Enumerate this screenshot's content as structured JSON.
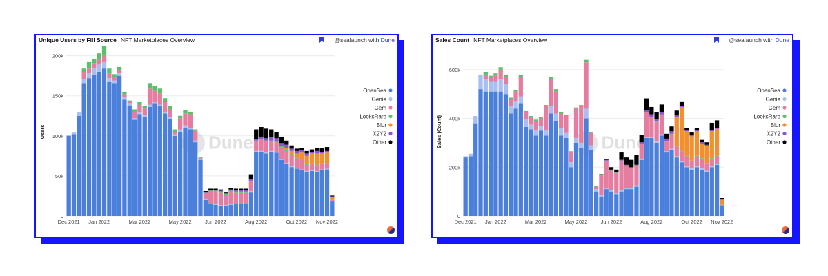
{
  "branding": {
    "credit_prefix": "@sealaunch with",
    "credit_brand": "Dune",
    "watermark": "Dune"
  },
  "legend": [
    {
      "name": "OpenSea",
      "color": "#4a7fdc"
    },
    {
      "name": "Genie",
      "color": "#a9bff2"
    },
    {
      "name": "Gem",
      "color": "#e67da0"
    },
    {
      "name": "LooksRare",
      "color": "#5dbf6a"
    },
    {
      "name": "Blur",
      "color": "#f2902f"
    },
    {
      "name": "X2Y2",
      "color": "#8b55d6"
    },
    {
      "name": "Other",
      "color": "#000000"
    }
  ],
  "chart_data": [
    {
      "type": "bar",
      "stacked": true,
      "title": "Unique Users by Fill Source",
      "subtitle": "NFT Marketplaces Overview",
      "xlabel": "",
      "ylabel": "Users",
      "ylim": [
        0,
        210000
      ],
      "yticks": [
        0,
        50000,
        100000,
        150000,
        200000
      ],
      "ytick_labels": [
        "0",
        "50k",
        "100k",
        "150k",
        "200k"
      ],
      "xtick_labels": [
        {
          "label": "Dec 2021",
          "index": 0
        },
        {
          "label": "Jan 2022",
          "index": 6
        },
        {
          "label": "Mar 2022",
          "index": 14
        },
        {
          "label": "May 2022",
          "index": 22
        },
        {
          "label": "Jun 2022",
          "index": 29
        },
        {
          "label": "Aug 2022",
          "index": 37
        },
        {
          "label": "Oct 2022",
          "index": 45
        },
        {
          "label": "Nov 2022",
          "index": 51
        }
      ],
      "grid": true,
      "legend_position": "right",
      "series": [
        {
          "name": "OpenSea",
          "values": [
            100000,
            102000,
            125000,
            165000,
            172000,
            176000,
            180000,
            184000,
            167000,
            165000,
            175000,
            145000,
            138000,
            120000,
            127000,
            124000,
            136000,
            140000,
            137000,
            128000,
            121000,
            100000,
            105000,
            110000,
            108000,
            92000,
            70000,
            20000,
            15000,
            14000,
            13000,
            13000,
            14000,
            15000,
            15000,
            15000,
            30000,
            80000,
            80000,
            78000,
            80000,
            79000,
            70000,
            65000,
            61000,
            59000,
            57000,
            55000,
            56000,
            55000,
            57000,
            58000,
            18000
          ]
        },
        {
          "name": "Genie",
          "values": [
            1000,
            2000,
            5000,
            6000,
            6000,
            8000,
            9000,
            8000,
            5000,
            4000,
            3000,
            3000,
            2000,
            2000,
            2000,
            2000,
            3000,
            2000,
            2000,
            2000,
            2000,
            2000,
            3000,
            3000,
            2000,
            2000,
            1000,
            500,
            500,
            500,
            500,
            500,
            500,
            500,
            500,
            500,
            1000,
            1000,
            1000,
            1000,
            1000,
            1000,
            1000,
            1000,
            1000,
            1000,
            1000,
            1000,
            1000,
            1000,
            1000,
            1000,
            500
          ]
        },
        {
          "name": "Gem",
          "values": [
            0,
            0,
            0,
            8000,
            6000,
            6000,
            6000,
            8000,
            6000,
            4000,
            4000,
            4000,
            2000,
            8000,
            10000,
            8000,
            20000,
            14000,
            14000,
            12000,
            10000,
            3000,
            14000,
            15000,
            17000,
            12000,
            1000,
            8000,
            15000,
            16000,
            16000,
            13000,
            16000,
            14000,
            14000,
            14000,
            12000,
            12000,
            14000,
            14000,
            12000,
            12000,
            15000,
            15000,
            14000,
            12000,
            12000,
            8000,
            8000,
            7000,
            7000,
            6000,
            2000
          ]
        },
        {
          "name": "LooksRare",
          "values": [
            0,
            0,
            0,
            5000,
            8000,
            6000,
            8000,
            12000,
            6000,
            4000,
            4000,
            3000,
            2000,
            3000,
            3000,
            3000,
            6000,
            6000,
            6000,
            5000,
            4000,
            3000,
            3000,
            4000,
            3000,
            2000,
            1000,
            1000,
            1000,
            1000,
            1000,
            1000,
            1000,
            1000,
            1000,
            1000,
            1000,
            1000,
            1000,
            1000,
            1000,
            1000,
            1000,
            1000,
            1000,
            1000,
            1000,
            1000,
            1000,
            1000,
            1000,
            1000,
            500
          ]
        },
        {
          "name": "Blur",
          "values": [
            0,
            0,
            0,
            0,
            0,
            0,
            0,
            0,
            0,
            0,
            0,
            0,
            0,
            0,
            0,
            0,
            0,
            0,
            0,
            0,
            0,
            0,
            0,
            0,
            0,
            0,
            0,
            0,
            0,
            0,
            0,
            0,
            0,
            0,
            0,
            0,
            0,
            0,
            0,
            0,
            0,
            0,
            0,
            3000,
            4000,
            5000,
            8000,
            10000,
            12000,
            14000,
            12000,
            13000,
            3000
          ]
        },
        {
          "name": "X2Y2",
          "values": [
            0,
            0,
            0,
            0,
            0,
            0,
            0,
            0,
            0,
            0,
            0,
            0,
            0,
            0,
            0,
            0,
            0,
            0,
            0,
            0,
            0,
            0,
            0,
            0,
            0,
            0,
            0,
            500,
            1000,
            1000,
            1000,
            1000,
            1500,
            1500,
            1500,
            1500,
            2000,
            2000,
            3000,
            3000,
            4000,
            4000,
            4000,
            4000,
            3000,
            3000,
            3000,
            3000,
            2000,
            3000,
            2000,
            2000,
            500
          ]
        },
        {
          "name": "Other",
          "values": [
            0,
            0,
            0,
            0,
            0,
            0,
            0,
            0,
            0,
            0,
            0,
            0,
            0,
            0,
            0,
            0,
            0,
            0,
            0,
            0,
            0,
            0,
            0,
            0,
            0,
            0,
            0,
            1000,
            1500,
            1500,
            1500,
            1500,
            2000,
            2000,
            2000,
            2000,
            6000,
            12000,
            12000,
            12000,
            10000,
            8000,
            8000,
            5000,
            4000,
            3000,
            3000,
            3000,
            3000,
            4000,
            5000,
            5000,
            1000
          ]
        }
      ]
    },
    {
      "type": "bar",
      "stacked": true,
      "title": "Sales Count",
      "subtitle": "NFT Marketplaces Overview",
      "xlabel": "",
      "ylabel": "Sales (Count)",
      "ylim": [
        0,
        690000
      ],
      "yticks": [
        0,
        200000,
        400000,
        600000
      ],
      "ytick_labels": [
        "0",
        "200k",
        "400k",
        "600k"
      ],
      "xtick_labels": [
        {
          "label": "Dec 2021",
          "index": 0
        },
        {
          "label": "Jan 2022",
          "index": 6
        },
        {
          "label": "Mar 2022",
          "index": 14
        },
        {
          "label": "May 2022",
          "index": 22
        },
        {
          "label": "Jun 2022",
          "index": 29
        },
        {
          "label": "Aug 2022",
          "index": 37
        },
        {
          "label": "Oct 2022",
          "index": 45
        },
        {
          "label": "Nov 2022",
          "index": 51
        }
      ],
      "grid": true,
      "legend_position": "right",
      "series": [
        {
          "name": "OpenSea",
          "values": [
            240000,
            245000,
            380000,
            520000,
            510000,
            510000,
            510000,
            510000,
            500000,
            420000,
            440000,
            460000,
            365000,
            355000,
            330000,
            350000,
            330000,
            420000,
            390000,
            330000,
            320000,
            200000,
            300000,
            280000,
            400000,
            270000,
            100000,
            80000,
            110000,
            100000,
            90000,
            100000,
            110000,
            110000,
            120000,
            230000,
            320000,
            320000,
            300000,
            330000,
            260000,
            270000,
            240000,
            220000,
            200000,
            190000,
            200000,
            190000,
            180000,
            200000,
            210000,
            40000
          ]
        },
        {
          "name": "Genie",
          "values": [
            5000,
            10000,
            30000,
            60000,
            50000,
            40000,
            40000,
            50000,
            40000,
            30000,
            30000,
            30000,
            30000,
            20000,
            20000,
            20000,
            20000,
            30000,
            30000,
            30000,
            20000,
            20000,
            20000,
            20000,
            40000,
            20000,
            10000,
            5000,
            5000,
            5000,
            5000,
            5000,
            5000,
            5000,
            5000,
            5000,
            5000,
            5000,
            5000,
            5000,
            5000,
            5000,
            5000,
            5000,
            5000,
            5000,
            5000,
            5000,
            5000,
            5000,
            5000,
            1000
          ]
        },
        {
          "name": "Gem",
          "values": [
            0,
            0,
            0,
            0,
            20000,
            20000,
            30000,
            40000,
            30000,
            30000,
            40000,
            80000,
            30000,
            30000,
            40000,
            30000,
            100000,
            110000,
            90000,
            60000,
            70000,
            40000,
            120000,
            150000,
            190000,
            50000,
            10000,
            80000,
            110000,
            80000,
            80000,
            120000,
            90000,
            80000,
            80000,
            60000,
            100000,
            80000,
            80000,
            80000,
            40000,
            60000,
            40000,
            40000,
            40000,
            30000,
            40000,
            40000,
            30000,
            30000,
            30000,
            5000
          ]
        },
        {
          "name": "LooksRare",
          "values": [
            0,
            0,
            0,
            0,
            10000,
            5000,
            5000,
            10000,
            10000,
            5000,
            5000,
            10000,
            5000,
            5000,
            5000,
            5000,
            5000,
            10000,
            10000,
            5000,
            5000,
            5000,
            5000,
            5000,
            10000,
            5000,
            2000,
            2000,
            2000,
            2000,
            2000,
            2000,
            2000,
            2000,
            2000,
            2000,
            2000,
            2000,
            2000,
            2000,
            2000,
            2000,
            2000,
            2000,
            2000,
            2000,
            2000,
            2000,
            2000,
            2000,
            2000,
            500
          ]
        },
        {
          "name": "Blur",
          "values": [
            0,
            0,
            0,
            0,
            0,
            0,
            0,
            0,
            0,
            0,
            0,
            0,
            0,
            0,
            0,
            0,
            0,
            0,
            0,
            0,
            0,
            0,
            0,
            0,
            0,
            0,
            0,
            0,
            0,
            0,
            0,
            0,
            0,
            0,
            0,
            0,
            0,
            0,
            0,
            0,
            0,
            0,
            120000,
            180000,
            100000,
            100000,
            100000,
            60000,
            70000,
            110000,
            110000,
            20000
          ]
        },
        {
          "name": "X2Y2",
          "values": [
            0,
            0,
            0,
            0,
            0,
            0,
            0,
            0,
            0,
            0,
            0,
            0,
            0,
            0,
            0,
            0,
            0,
            0,
            0,
            0,
            0,
            0,
            0,
            0,
            0,
            0,
            0,
            2000,
            3000,
            3000,
            3000,
            3000,
            3000,
            3000,
            3000,
            5000,
            5000,
            10000,
            10000,
            10000,
            10000,
            10000,
            5000,
            5000,
            5000,
            5000,
            5000,
            5000,
            5000,
            5000,
            5000,
            2000
          ]
        },
        {
          "name": "Other",
          "values": [
            0,
            0,
            0,
            0,
            0,
            0,
            0,
            0,
            0,
            0,
            0,
            0,
            0,
            0,
            0,
            0,
            0,
            0,
            0,
            0,
            0,
            0,
            0,
            0,
            0,
            0,
            0,
            2000,
            3000,
            10000,
            10000,
            30000,
            30000,
            30000,
            40000,
            30000,
            50000,
            30000,
            30000,
            30000,
            20000,
            20000,
            20000,
            15000,
            10000,
            10000,
            10000,
            10000,
            10000,
            30000,
            30000,
            5000
          ]
        }
      ]
    }
  ]
}
